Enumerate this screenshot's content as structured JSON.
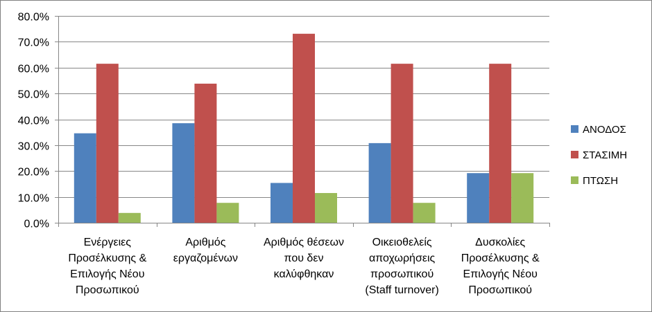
{
  "chart_data": {
    "type": "bar",
    "categories": [
      [
        "Ενέργειες",
        "Προσέλκυσης &",
        "Επιλογής Νέου",
        "Προσωπικού"
      ],
      [
        "Αριθμός",
        "εργαζομένων"
      ],
      [
        "Αριθμός θέσεων",
        "που δεν",
        "καλύφθηκαν"
      ],
      [
        "Οικειοθελείς",
        "αποχωρήσεις",
        "προσωπικού",
        "(Staff turnover)"
      ],
      [
        "Δυσκολίες",
        "Προσέλκυσης &",
        "Επιλογής Νέου",
        "Προσωπικού"
      ]
    ],
    "series": [
      {
        "name": "ΑΝΟΔΟΣ",
        "color": "#4F81BD",
        "values": [
          34.6,
          38.5,
          15.4,
          30.8,
          19.2
        ]
      },
      {
        "name": "ΣΤΑΣΙΜΗ",
        "color": "#C0504D",
        "values": [
          61.5,
          53.8,
          73.1,
          61.5,
          61.5
        ]
      },
      {
        "name": "ΠΤΩΣΗ",
        "color": "#9BBB59",
        "values": [
          3.8,
          7.7,
          11.5,
          7.7,
          19.2
        ]
      }
    ],
    "ylim": [
      0,
      80
    ],
    "yticks": [
      "0.0%",
      "10.0%",
      "20.0%",
      "30.0%",
      "40.0%",
      "50.0%",
      "60.0%",
      "70.0%",
      "80.0%"
    ],
    "grid": true,
    "legend_position": "right"
  }
}
